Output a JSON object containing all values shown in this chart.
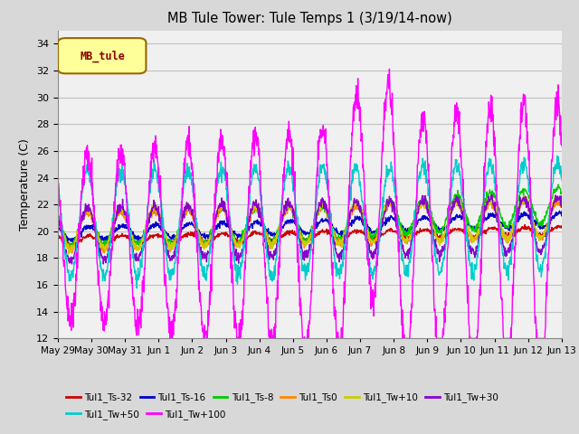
{
  "title": "MB Tule Tower: Tule Temps 1 (3/19/14-now)",
  "ylabel": "Temperature (C)",
  "ylim": [
    12,
    35
  ],
  "yticks": [
    12,
    14,
    16,
    18,
    20,
    22,
    24,
    26,
    28,
    30,
    32,
    34
  ],
  "legend_label": "MB_tule",
  "series": [
    {
      "label": "Tul1_Ts-32",
      "color": "#cc0000"
    },
    {
      "label": "Tul1_Ts-16",
      "color": "#0000cc"
    },
    {
      "label": "Tul1_Ts-8",
      "color": "#00cc00"
    },
    {
      "label": "Tul1_Ts0",
      "color": "#ff8800"
    },
    {
      "label": "Tul1_Tw+10",
      "color": "#cccc00"
    },
    {
      "label": "Tul1_Tw+30",
      "color": "#8800cc"
    },
    {
      "label": "Tul1_Tw+50",
      "color": "#00cccc"
    },
    {
      "label": "Tul1_Tw+100",
      "color": "#ff00ff"
    }
  ],
  "xtick_labels": [
    "May 29",
    "May 30",
    "May 31",
    "Jun 1",
    "Jun 2",
    "Jun 3",
    "Jun 4",
    "Jun 5",
    "Jun 6",
    "Jun 7",
    "Jun 8",
    "Jun 9",
    "Jun 10",
    "Jun 11",
    "Jun 12",
    "Jun 13"
  ]
}
